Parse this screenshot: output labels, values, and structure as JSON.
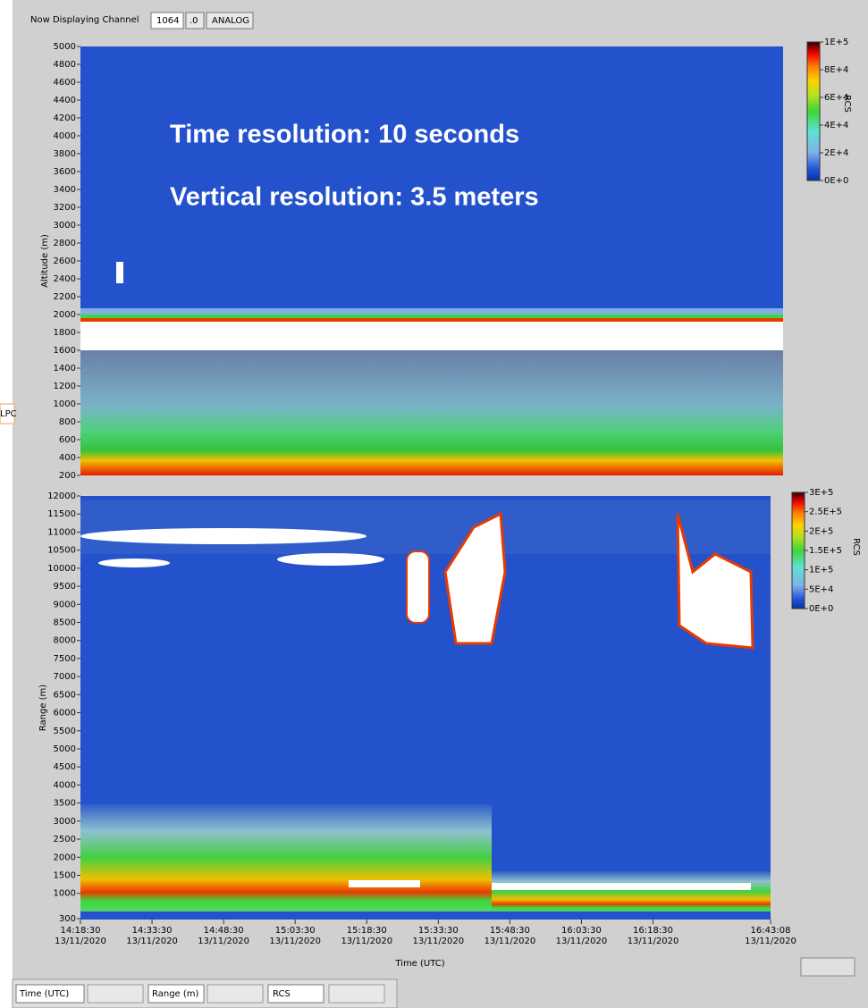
{
  "toolbar": {
    "label": "Now Displaying Channel",
    "channel": "1064",
    "suffix": ".0",
    "mode": "ANALOG"
  },
  "side_label": "LPC",
  "plot1": {
    "ylabel": "Altitude (m)",
    "ylim": [
      200,
      5000
    ],
    "yticks": [
      200,
      400,
      600,
      800,
      1000,
      1200,
      1400,
      1600,
      1800,
      2000,
      2200,
      2400,
      2600,
      2800,
      3000,
      3200,
      3400,
      3600,
      3800,
      4000,
      4200,
      4400,
      4600,
      4800,
      5000
    ],
    "annotations": [
      "Time resolution: 10 seconds",
      "Vertical resolution: 3.5 meters"
    ],
    "colorbar": {
      "label": "RCS",
      "lim": [
        0,
        100000
      ],
      "ticks": [
        {
          "value": 0,
          "label": "0E+0"
        },
        {
          "value": 20000,
          "label": "2E+4"
        },
        {
          "value": 40000,
          "label": "4E+4"
        },
        {
          "value": 60000,
          "label": "6E+4"
        },
        {
          "value": 80000,
          "label": "8E+4"
        },
        {
          "value": 100000,
          "label": "1E+5"
        }
      ]
    }
  },
  "plot2": {
    "ylabel": "Range (m)",
    "xlabel": "Time (UTC)",
    "ylim": [
      300,
      12000
    ],
    "yticks": [
      300,
      1000,
      1500,
      2000,
      2500,
      3000,
      3500,
      4000,
      4500,
      5000,
      5500,
      6000,
      6500,
      7000,
      7500,
      8000,
      8500,
      9000,
      9500,
      10000,
      10500,
      11000,
      11500,
      12000
    ],
    "xlim": [
      "14:18:30",
      "16:43:08"
    ],
    "xticks": [
      {
        "time": "14:18:30",
        "date": "13/11/2020"
      },
      {
        "time": "14:33:30",
        "date": "13/11/2020"
      },
      {
        "time": "14:48:30",
        "date": "13/11/2020"
      },
      {
        "time": "15:03:30",
        "date": "13/11/2020"
      },
      {
        "time": "15:18:30",
        "date": "13/11/2020"
      },
      {
        "time": "15:33:30",
        "date": "13/11/2020"
      },
      {
        "time": "15:48:30",
        "date": "13/11/2020"
      },
      {
        "time": "16:03:30",
        "date": "13/11/2020"
      },
      {
        "time": "16:18:30",
        "date": "13/11/2020"
      },
      {
        "time": "16:43:08",
        "date": "13/11/2020"
      }
    ],
    "colorbar": {
      "label": "RCS",
      "lim": [
        0,
        300000
      ],
      "ticks": [
        {
          "value": 0,
          "label": "0E+0"
        },
        {
          "value": 50000,
          "label": "5E+4"
        },
        {
          "value": 100000,
          "label": "1E+5"
        },
        {
          "value": 150000,
          "label": "1.5E+5"
        },
        {
          "value": 200000,
          "label": "2E+5"
        },
        {
          "value": 250000,
          "label": "2.5E+5"
        },
        {
          "value": 300000,
          "label": "3E+5"
        }
      ]
    }
  },
  "legend_bar": {
    "x": "Time (UTC)",
    "y": "Range (m)",
    "z": "RCS"
  }
}
